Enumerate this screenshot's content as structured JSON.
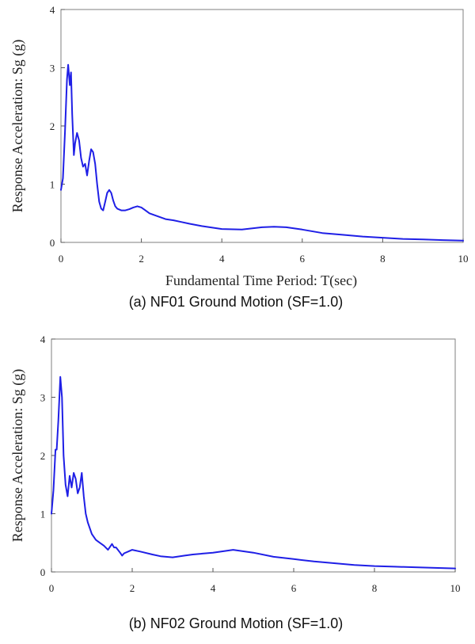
{
  "chart_data": [
    {
      "type": "line",
      "xlabel": "Fundamental Time Period: T(sec)",
      "ylabel": "Response Acceleration: Sg (g)",
      "caption": "(a) NF01 Ground Motion (SF=1.0)",
      "xlim": [
        0,
        10
      ],
      "ylim": [
        0,
        4
      ],
      "xticks": [
        "0",
        "2",
        "4",
        "6",
        "8",
        "10"
      ],
      "yticks": [
        "0",
        "1",
        "2",
        "3",
        "4"
      ],
      "grid": false,
      "legend": "none",
      "series": [
        {
          "color": "#1f1fe6",
          "x": [
            0.0,
            0.05,
            0.1,
            0.15,
            0.18,
            0.22,
            0.25,
            0.28,
            0.32,
            0.35,
            0.4,
            0.45,
            0.5,
            0.55,
            0.6,
            0.65,
            0.7,
            0.75,
            0.8,
            0.85,
            0.9,
            0.95,
            1.0,
            1.05,
            1.1,
            1.15,
            1.2,
            1.25,
            1.3,
            1.35,
            1.4,
            1.5,
            1.6,
            1.7,
            1.8,
            1.9,
            2.0,
            2.1,
            2.2,
            2.4,
            2.6,
            2.8,
            3.0,
            3.2,
            3.5,
            4.0,
            4.5,
            5.0,
            5.3,
            5.6,
            6.0,
            6.5,
            7.0,
            7.5,
            8.0,
            8.5,
            9.0,
            9.5,
            10.0
          ],
          "y": [
            0.9,
            1.1,
            1.9,
            2.8,
            3.05,
            2.7,
            2.92,
            2.2,
            1.5,
            1.7,
            1.88,
            1.75,
            1.45,
            1.3,
            1.35,
            1.15,
            1.4,
            1.6,
            1.55,
            1.35,
            1.0,
            0.7,
            0.58,
            0.55,
            0.7,
            0.85,
            0.9,
            0.85,
            0.72,
            0.62,
            0.58,
            0.55,
            0.55,
            0.57,
            0.6,
            0.62,
            0.6,
            0.55,
            0.5,
            0.45,
            0.4,
            0.38,
            0.35,
            0.32,
            0.28,
            0.23,
            0.22,
            0.26,
            0.27,
            0.26,
            0.22,
            0.16,
            0.13,
            0.1,
            0.08,
            0.06,
            0.05,
            0.04,
            0.03
          ]
        }
      ]
    },
    {
      "type": "line",
      "xlabel": "",
      "ylabel": "Response Acceleration: Sg (g)",
      "caption": "(b) NF02 Ground Motion (SF=1.0)",
      "xlim": [
        0,
        10
      ],
      "ylim": [
        0,
        4
      ],
      "xticks": [
        "0",
        "2",
        "4",
        "6",
        "8",
        "10"
      ],
      "yticks": [
        "0",
        "1",
        "2",
        "3",
        "4"
      ],
      "grid": false,
      "legend": "none",
      "series": [
        {
          "color": "#1f1fe6",
          "x": [
            0.0,
            0.05,
            0.1,
            0.13,
            0.17,
            0.22,
            0.26,
            0.3,
            0.35,
            0.4,
            0.45,
            0.5,
            0.55,
            0.6,
            0.65,
            0.7,
            0.75,
            0.8,
            0.85,
            0.9,
            1.0,
            1.1,
            1.2,
            1.3,
            1.4,
            1.5,
            1.55,
            1.6,
            1.7,
            1.75,
            1.8,
            1.9,
            2.0,
            2.2,
            2.5,
            2.7,
            3.0,
            3.3,
            3.5,
            4.0,
            4.5,
            5.0,
            5.5,
            6.0,
            6.5,
            7.0,
            7.5,
            8.0,
            8.5,
            9.0,
            9.5,
            10.0
          ],
          "y": [
            1.0,
            1.4,
            2.1,
            2.1,
            2.6,
            3.35,
            3.0,
            2.0,
            1.5,
            1.3,
            1.65,
            1.45,
            1.7,
            1.6,
            1.35,
            1.45,
            1.7,
            1.3,
            1.0,
            0.85,
            0.65,
            0.55,
            0.5,
            0.45,
            0.38,
            0.48,
            0.42,
            0.42,
            0.33,
            0.28,
            0.32,
            0.35,
            0.38,
            0.35,
            0.3,
            0.27,
            0.25,
            0.28,
            0.3,
            0.33,
            0.38,
            0.33,
            0.26,
            0.22,
            0.18,
            0.15,
            0.12,
            0.1,
            0.09,
            0.08,
            0.07,
            0.06
          ]
        }
      ]
    }
  ]
}
